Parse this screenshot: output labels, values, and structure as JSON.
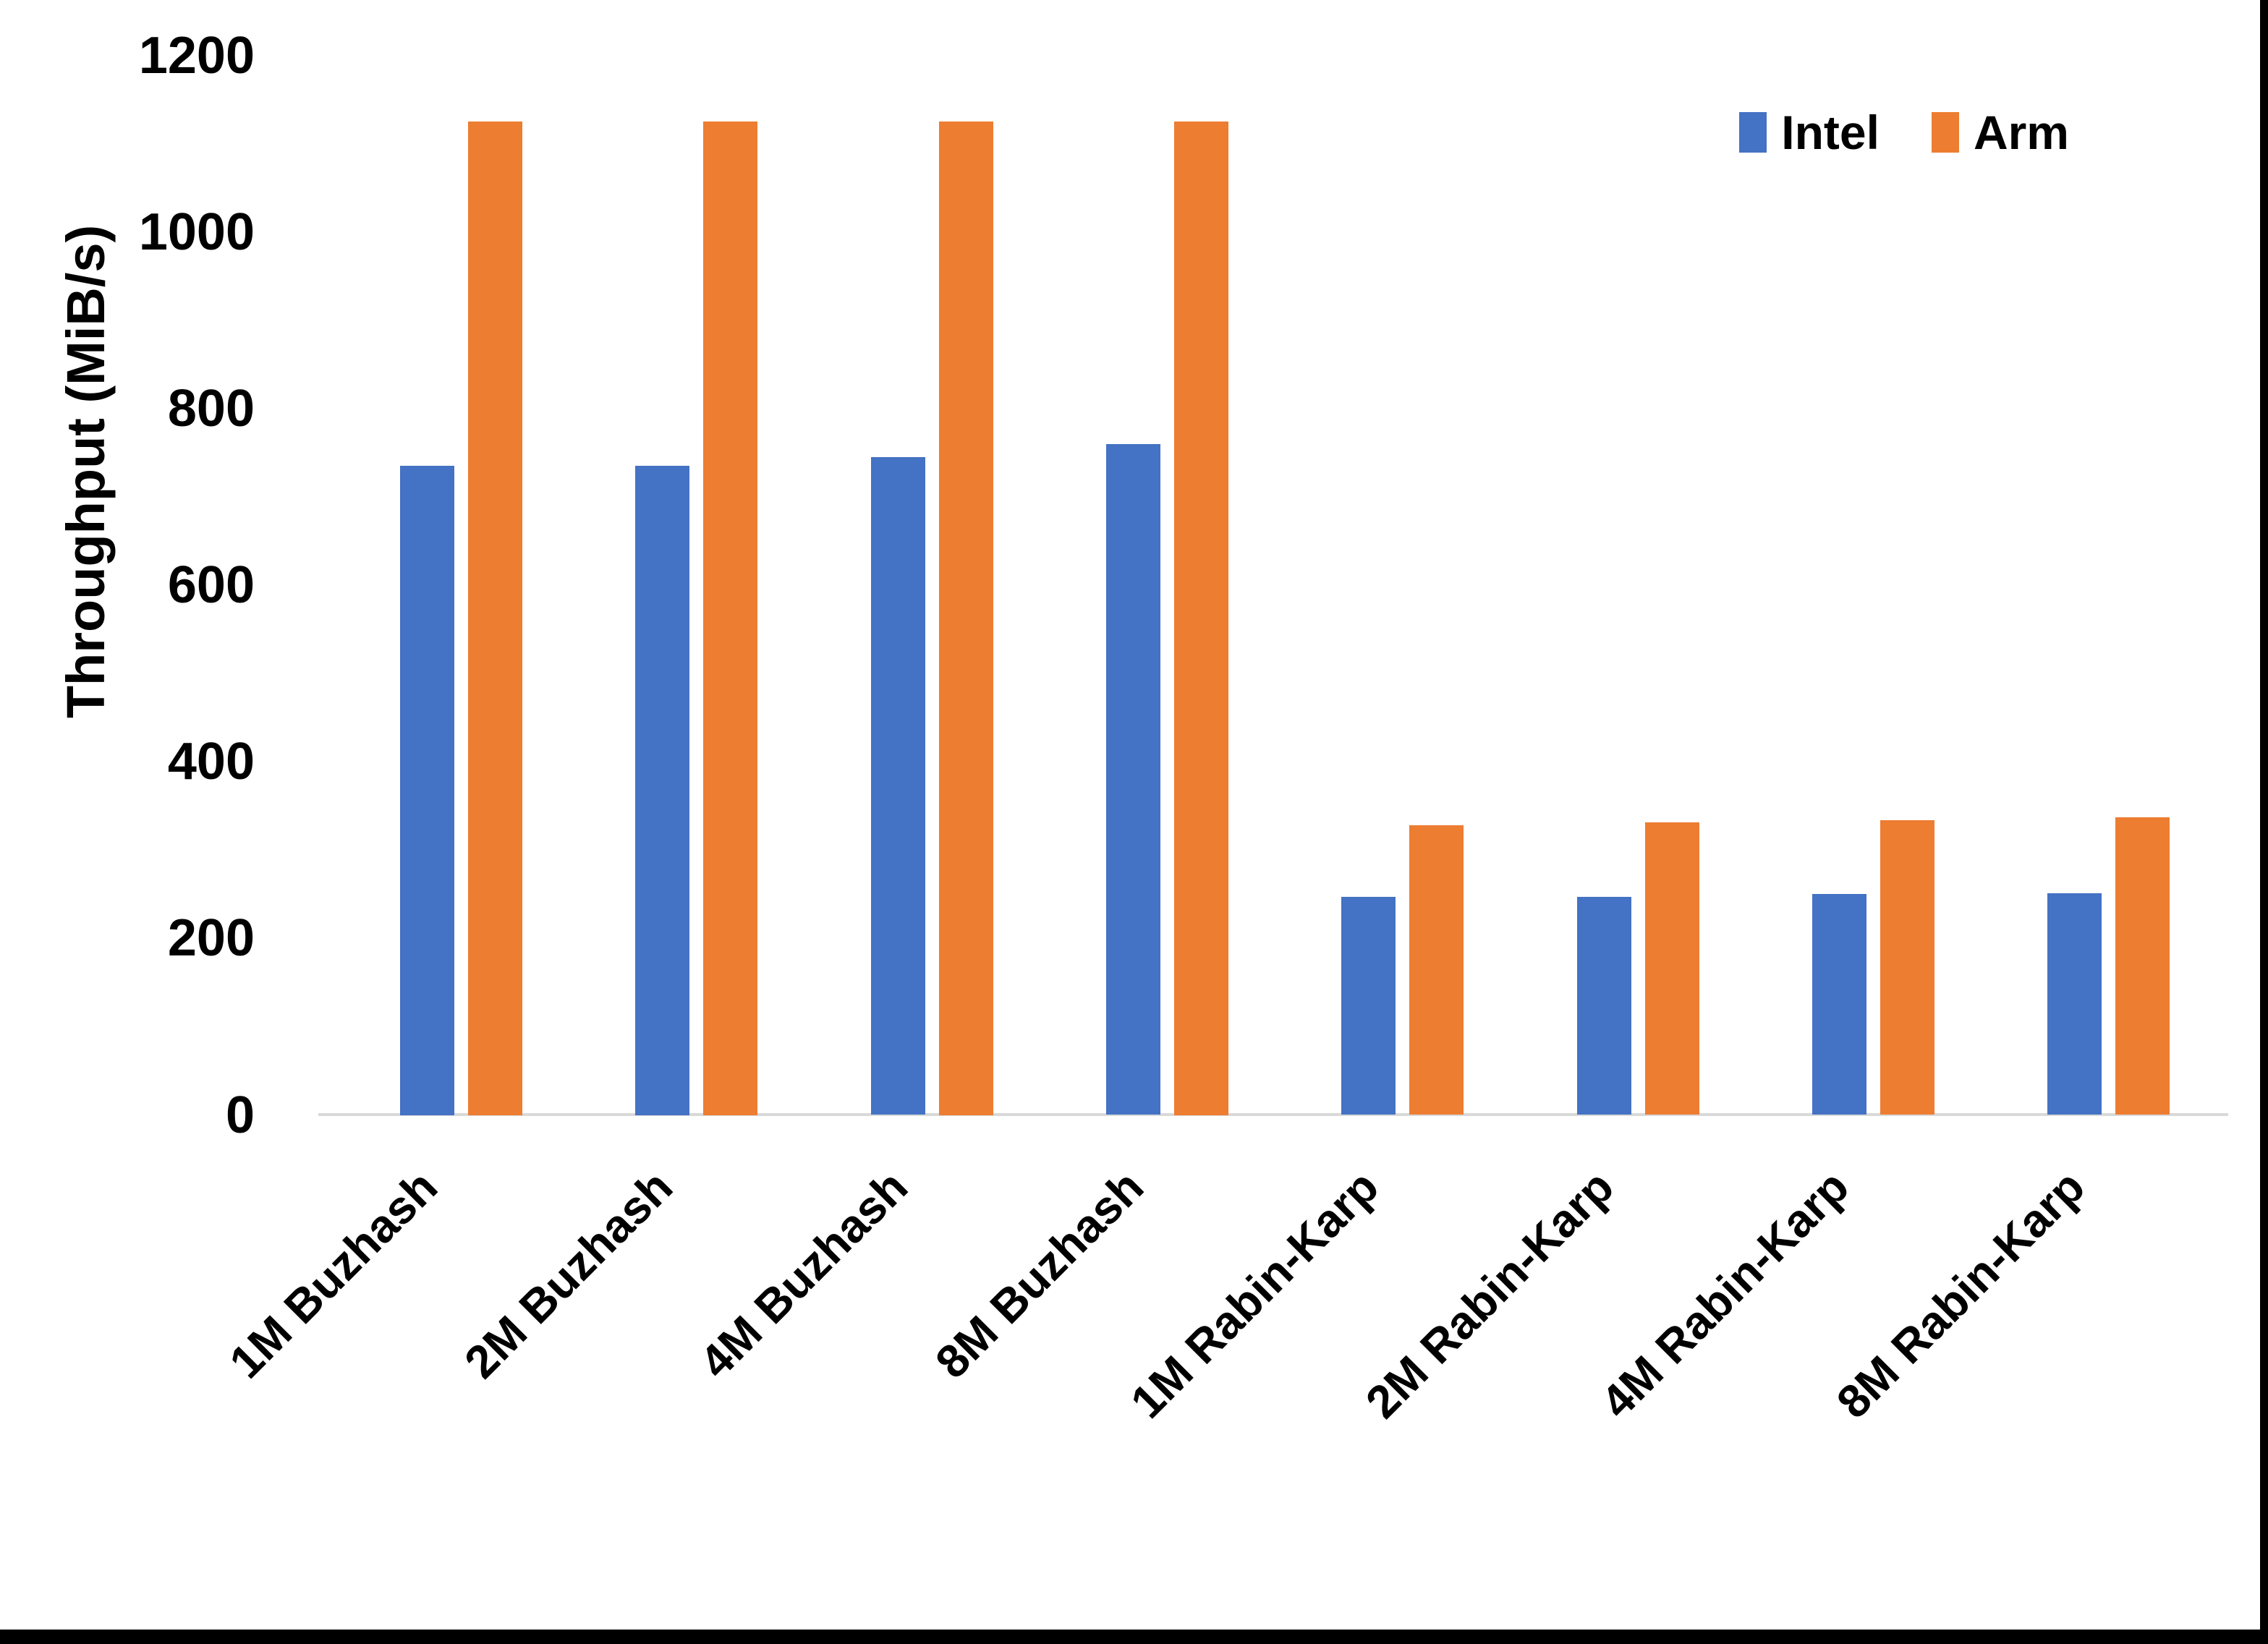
{
  "chart_data": {
    "type": "bar",
    "title": "",
    "categories": [
      "1M Buzhash",
      "2M Buzhash",
      "4M Buzhash",
      "8M Buzhash",
      "1M Rabin-Karp",
      "2M Rabin-Karp",
      "4M Rabin-Karp",
      "8M Rabin-Karp"
    ],
    "series": [
      {
        "name": "Intel",
        "color": "#4472C4",
        "values": [
          735,
          735,
          745,
          760,
          247,
          247,
          250,
          251
        ]
      },
      {
        "name": "Arm",
        "color": "#ED7D31",
        "values": [
          1125,
          1125,
          1125,
          1125,
          328,
          331,
          334,
          337
        ]
      }
    ],
    "xlabel": "",
    "ylabel": "Throughput (MiB/s)",
    "ylim": [
      0,
      1200
    ],
    "ytick_step": 200,
    "yticks": [
      0,
      200,
      400,
      600,
      800,
      1000,
      1200
    ],
    "grid": false,
    "legend_position": "top-right",
    "colors": {
      "axis_line": "#D9D9D9",
      "text": "#000000",
      "frame": "#000000"
    }
  }
}
